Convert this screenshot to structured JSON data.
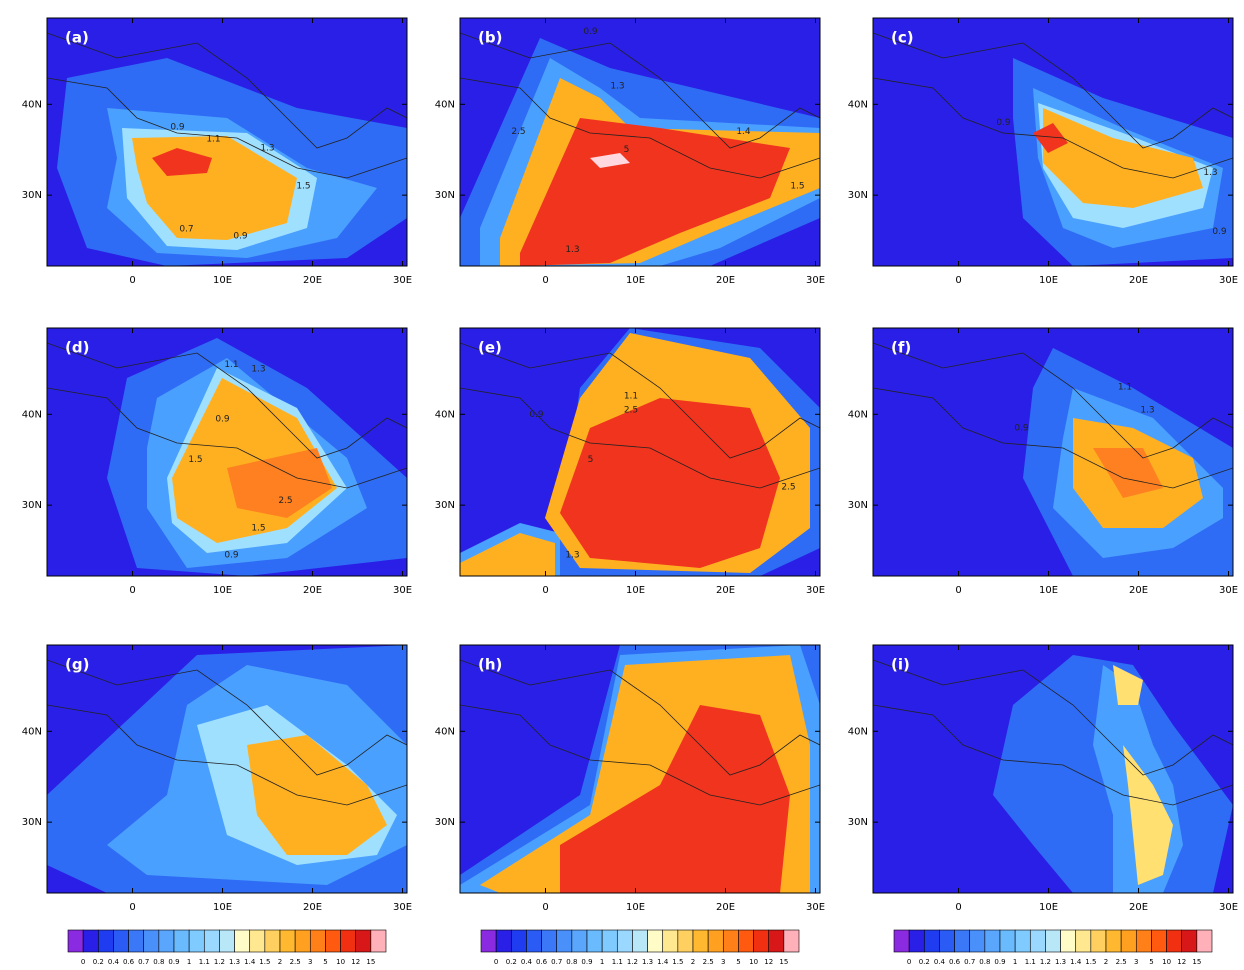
{
  "panels": [
    {
      "label": "(a)",
      "contour_labels": [
        {
          "text": "0.9",
          "lon": 5,
          "lat": 37.5
        },
        {
          "text": "1.1",
          "lon": 9,
          "lat": 36.2
        },
        {
          "text": "1.3",
          "lon": 15,
          "lat": 35.2
        },
        {
          "text": "1.5",
          "lon": 19,
          "lat": 31
        },
        {
          "text": "0.7",
          "lon": 6,
          "lat": 26.3
        },
        {
          "text": "0.9",
          "lon": 12,
          "lat": 25.5
        }
      ]
    },
    {
      "label": "(b)",
      "contour_labels": [
        {
          "text": "0.9",
          "lon": 5,
          "lat": 48
        },
        {
          "text": "1.3",
          "lon": 8,
          "lat": 42
        },
        {
          "text": "2.5",
          "lon": -3,
          "lat": 37
        },
        {
          "text": "5",
          "lon": 9,
          "lat": 35
        },
        {
          "text": "1.4",
          "lon": 22,
          "lat": 37
        },
        {
          "text": "1.5",
          "lon": 28,
          "lat": 31
        },
        {
          "text": "1.3",
          "lon": 3,
          "lat": 24
        }
      ]
    },
    {
      "label": "(c)",
      "contour_labels": [
        {
          "text": "0.9",
          "lon": 5,
          "lat": 38
        },
        {
          "text": "1.3",
          "lon": 28,
          "lat": 32.5
        },
        {
          "text": "0.9",
          "lon": 29,
          "lat": 26
        }
      ]
    },
    {
      "label": "(d)",
      "contour_labels": [
        {
          "text": "1.1",
          "lon": 11,
          "lat": 45.5
        },
        {
          "text": "1.3",
          "lon": 14,
          "lat": 45
        },
        {
          "text": "0.9",
          "lon": 10,
          "lat": 39.5
        },
        {
          "text": "1.5",
          "lon": 7,
          "lat": 35
        },
        {
          "text": "2.5",
          "lon": 17,
          "lat": 30.5
        },
        {
          "text": "1.5",
          "lon": 14,
          "lat": 27.5
        },
        {
          "text": "0.9",
          "lon": 11,
          "lat": 24.5
        }
      ]
    },
    {
      "label": "(e)",
      "contour_labels": [
        {
          "text": "1.1",
          "lon": 9.5,
          "lat": 42
        },
        {
          "text": "2.5",
          "lon": 9.5,
          "lat": 40.5
        },
        {
          "text": "0.9",
          "lon": -1,
          "lat": 40
        },
        {
          "text": "5",
          "lon": 5,
          "lat": 35
        },
        {
          "text": "2.5",
          "lon": 27,
          "lat": 32
        },
        {
          "text": "1.3",
          "lon": 3,
          "lat": 24.5
        }
      ]
    },
    {
      "label": "(f)",
      "contour_labels": [
        {
          "text": "1.1",
          "lon": 18.5,
          "lat": 43
        },
        {
          "text": "1.3",
          "lon": 21,
          "lat": 40.5
        },
        {
          "text": "0.9",
          "lon": 7,
          "lat": 38.5
        }
      ]
    },
    {
      "label": "(g)",
      "contour_labels": []
    },
    {
      "label": "(h)",
      "contour_labels": []
    },
    {
      "label": "(i)",
      "contour_labels": []
    }
  ],
  "lonlim": [
    -9.5,
    30.5
  ],
  "latlim": [
    22.2,
    49.5
  ],
  "lon_ticks": [
    0,
    {
      "value": 10,
      "label": "10E"
    },
    {
      "value": 20,
      "label": "20E"
    },
    {
      "value": 30,
      "label": "30E"
    }
  ],
  "lat_ticks": [
    {
      "value": 30,
      "label": "30N"
    },
    {
      "value": 40,
      "label": "40N"
    }
  ],
  "colorbar": {
    "levels": [
      0,
      0.2,
      0.4,
      0.6,
      0.7,
      0.8,
      0.9,
      1,
      1.1,
      1.2,
      1.3,
      1.4,
      1.5,
      2,
      2.5,
      3,
      5,
      10,
      12,
      15
    ],
    "colors": [
      "#8a2be2",
      "#2a1fe6",
      "#1f3cf0",
      "#2a5cf5",
      "#3a78f8",
      "#4a90fa",
      "#5aa6fc",
      "#6abafe",
      "#7fcaff",
      "#9ad8ff",
      "#b8e8f8",
      "#fffcc8",
      "#ffe890",
      "#ffd060",
      "#ffb830",
      "#ffa020",
      "#ff8018",
      "#ff5a10",
      "#f03010",
      "#d81818",
      "#ffb0b8"
    ]
  }
}
